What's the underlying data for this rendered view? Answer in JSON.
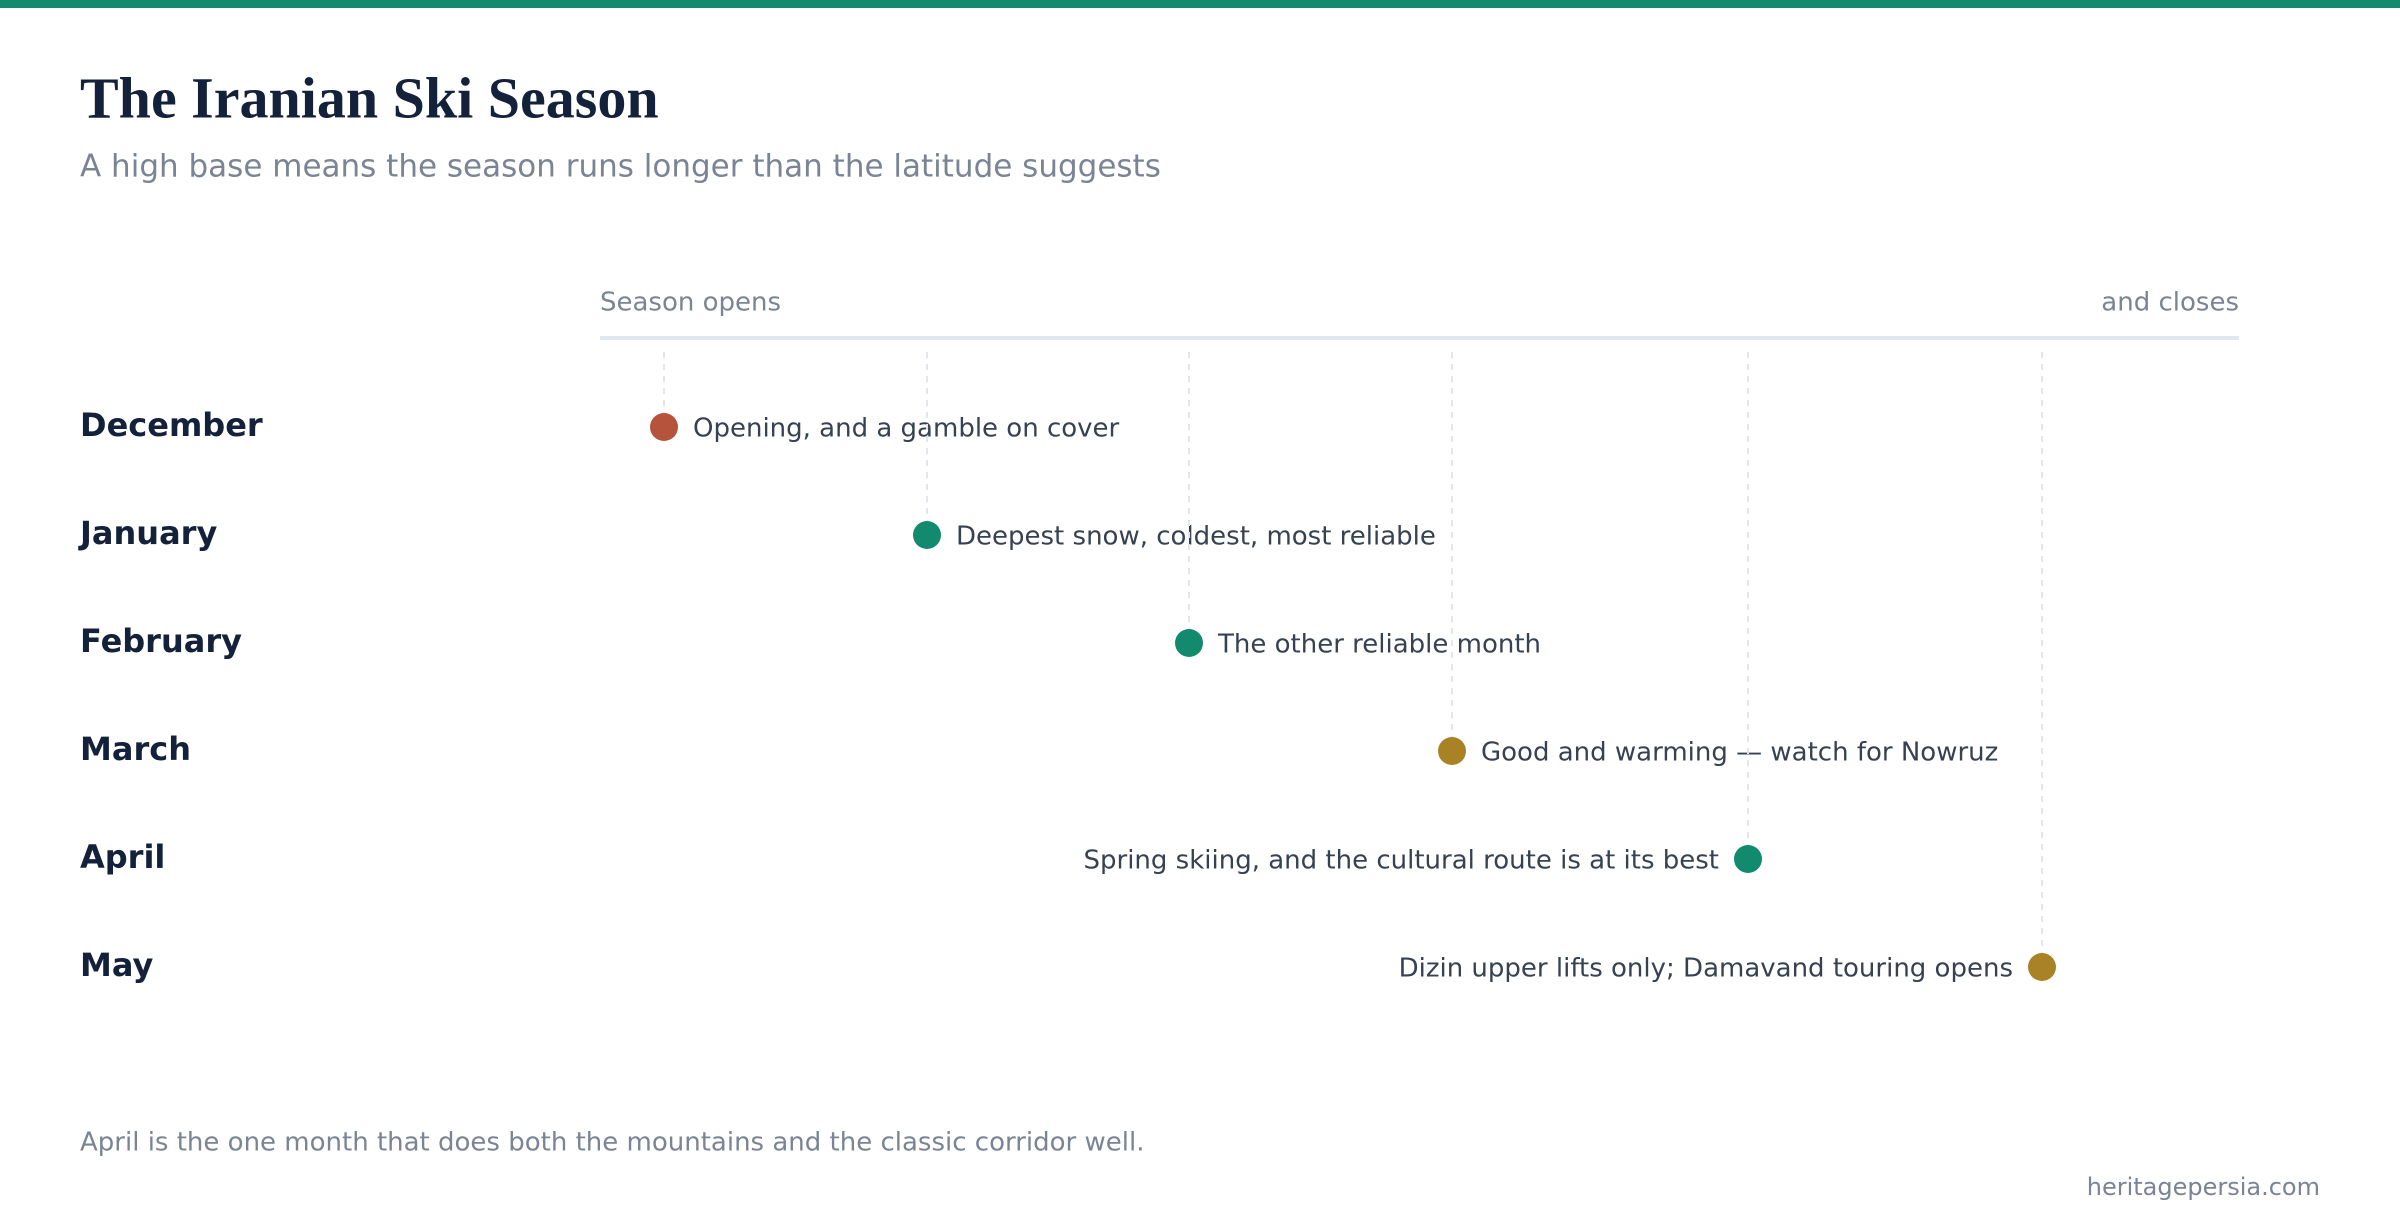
{
  "header": {
    "title": "The Iranian Ski Season",
    "subtitle": "A high base means the season runs longer than the latitude suggests"
  },
  "axis": {
    "start": "Season opens",
    "end": "and closes"
  },
  "rows": [
    {
      "month": "December",
      "note": "Opening, and a gamble on cover",
      "color": "#b5533c"
    },
    {
      "month": "January",
      "note": "Deepest snow, coldest, most reliable",
      "color": "#128a6e"
    },
    {
      "month": "February",
      "note": "The other reliable month",
      "color": "#128a6e"
    },
    {
      "month": "March",
      "note": "Good and warming — watch for Nowruz",
      "color": "#a98225"
    },
    {
      "month": "April",
      "note": "Spring skiing, and the cultural route is at its best",
      "color": "#128a6e"
    },
    {
      "month": "May",
      "note": "Dizin upper lifts only; Damavand touring opens",
      "color": "#a98225"
    }
  ],
  "footer": {
    "note": "April is the one month that does both the mountains and the classic corridor well.",
    "source": "heritagepersia.com"
  }
}
